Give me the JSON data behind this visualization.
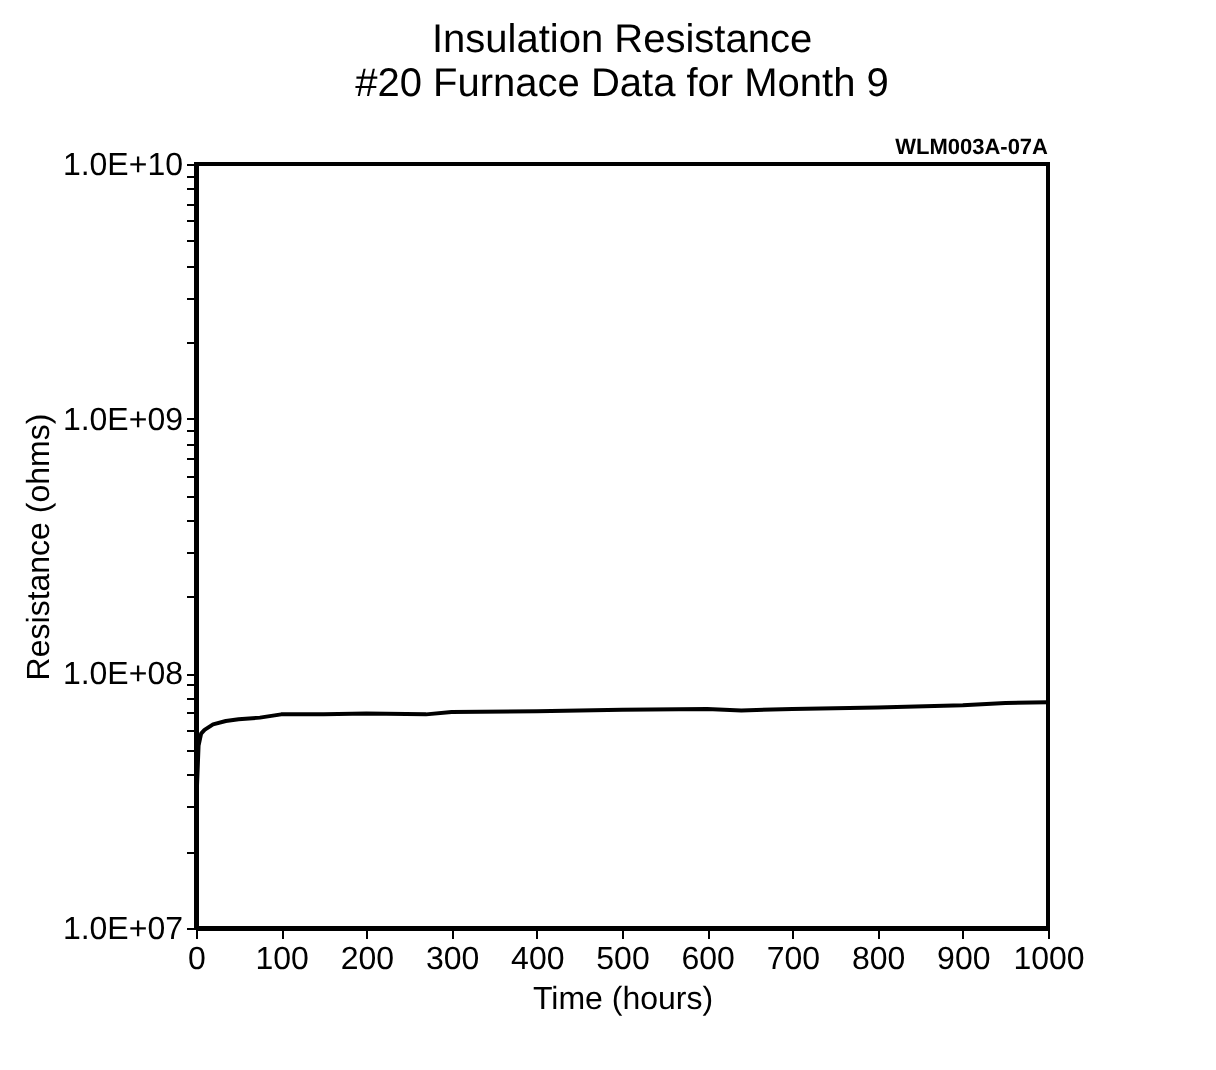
{
  "chart_data": {
    "type": "line",
    "title": [
      "Insulation Resistance",
      "#20 Furnace Data for Month 9"
    ],
    "xlabel": "Time (hours)",
    "ylabel": "Resistance (ohms)",
    "annotations": [
      "WLM003A-07A"
    ],
    "x": [
      0,
      1,
      3,
      6,
      10,
      20,
      35,
      50,
      75,
      100,
      150,
      200,
      270,
      300,
      400,
      500,
      600,
      640,
      700,
      800,
      900,
      950,
      1000
    ],
    "series": [
      {
        "color": "#000000",
        "values": [
          21000000,
          35000000,
          52000000,
          58000000,
          60000000,
          63000000,
          65000000,
          66000000,
          67000000,
          69000000,
          69000000,
          69500000,
          69000000,
          70500000,
          71000000,
          72000000,
          72500000,
          71500000,
          72500000,
          73500000,
          75000000,
          76500000,
          77000000
        ]
      }
    ],
    "log": "y",
    "grid": false,
    "marker": "none",
    "line_style": "solid",
    "xlim": [
      0,
      1000
    ],
    "xticks": [
      0,
      100,
      200,
      300,
      400,
      500,
      600,
      700,
      800,
      900,
      1000
    ],
    "ylim": [
      10000000,
      10000000000
    ],
    "yticks": [
      {
        "value": 10000000,
        "label": "1.0E+07"
      },
      {
        "value": 20000000,
        "label": null
      },
      {
        "value": 30000000,
        "label": null
      },
      {
        "value": 40000000,
        "label": null
      },
      {
        "value": 50000000,
        "label": null
      },
      {
        "value": 60000000,
        "label": null
      },
      {
        "value": 70000000,
        "label": null
      },
      {
        "value": 80000000,
        "label": null
      },
      {
        "value": 90000000,
        "label": null
      },
      {
        "value": 100000000,
        "label": "1.0E+08"
      },
      {
        "value": 200000000,
        "label": null
      },
      {
        "value": 300000000,
        "label": null
      },
      {
        "value": 400000000,
        "label": null
      },
      {
        "value": 500000000,
        "label": null
      },
      {
        "value": 600000000,
        "label": null
      },
      {
        "value": 700000000,
        "label": null
      },
      {
        "value": 800000000,
        "label": null
      },
      {
        "value": 900000000,
        "label": null
      },
      {
        "value": 1000000000,
        "label": "1.0E+09"
      },
      {
        "value": 2000000000,
        "label": null
      },
      {
        "value": 3000000000,
        "label": null
      },
      {
        "value": 4000000000,
        "label": null
      },
      {
        "value": 5000000000,
        "label": null
      },
      {
        "value": 6000000000,
        "label": null
      },
      {
        "value": 7000000000,
        "label": null
      },
      {
        "value": 8000000000,
        "label": null
      },
      {
        "value": 9000000000,
        "label": null
      },
      {
        "value": 10000000000,
        "label": "1.0E+10"
      }
    ]
  }
}
